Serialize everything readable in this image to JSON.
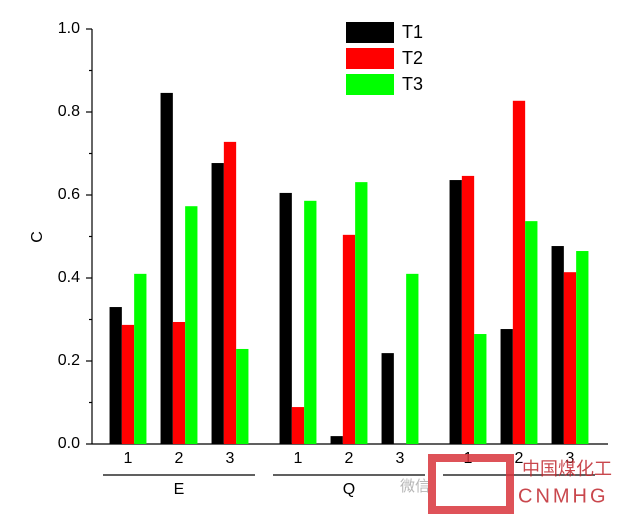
{
  "chart_data": {
    "type": "bar",
    "y_label": "C",
    "categories": [
      "1",
      "2",
      "3",
      "1",
      "2",
      "3",
      "1",
      "2",
      "3"
    ],
    "groups": [
      "E",
      "Q",
      null
    ],
    "series": [
      {
        "name": "T1",
        "color": "#000000",
        "values": [
          0.33,
          0.846,
          0.677,
          0.605,
          0.019,
          0.219,
          0.636,
          0.277,
          0.477
        ]
      },
      {
        "name": "T2",
        "color": "#ff0000",
        "values": [
          0.287,
          0.294,
          0.728,
          0.089,
          0.504,
          0,
          0.646,
          0.827,
          0.414
        ]
      },
      {
        "name": "T3",
        "color": "#00ff00",
        "values": [
          0.41,
          0.573,
          0.229,
          0.586,
          0.631,
          0.41,
          0.265,
          0.537,
          0.465
        ]
      }
    ],
    "ylim": [
      0,
      1.0
    ],
    "yticks": [
      {
        "value": 0,
        "label": "0.0"
      },
      {
        "value": 0.2,
        "label": "0.2"
      },
      {
        "value": 0.4,
        "label": "0.4"
      },
      {
        "value": 0.6,
        "label": "0.6"
      },
      {
        "value": 0.8,
        "label": "0.8"
      },
      {
        "value": 1.0,
        "label": "1.0"
      }
    ],
    "legend": "top-center",
    "watermark": {
      "wechat": "微信",
      "name": "中国煤化工",
      "code": "CNMHG"
    }
  }
}
